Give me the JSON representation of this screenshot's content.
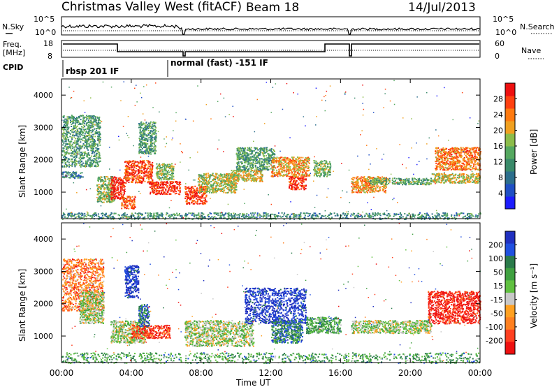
{
  "header": {
    "title": "Christmas Valley West (fitACF)",
    "beam": "Beam 18",
    "date": "14/Jul/2013"
  },
  "summary_panel": {
    "nsky_label": "N.Sky",
    "nsky_ticks": [
      "10^5",
      "10^0"
    ],
    "nsearch_label": "N.Search",
    "nsearch_ticks": [
      "10^5",
      "10^0"
    ],
    "freq_label": [
      "Freq.",
      "[MHz]"
    ],
    "freq_ticks": [
      "18",
      "8"
    ],
    "nave_label": "Nave",
    "nave_ticks": [
      "60",
      "0"
    ],
    "cpid_label": "CPID",
    "cpid_segments": [
      "rbsp 201 IF",
      "normal (fast) -151 IF"
    ]
  },
  "colors": {
    "power_scale": [
      "#1d1dff",
      "#1f4fc4",
      "#2c6e8c",
      "#3a8a6a",
      "#55a860",
      "#8cbc4a",
      "#f0a020",
      "#ff7a10",
      "#ff4010",
      "#ee1010"
    ],
    "velocity_scale": [
      "#2030c0",
      "#2050e0",
      "#2a7a4a",
      "#3fa040",
      "#60c040",
      "#c8c8c8",
      "#ffa020",
      "#ff8020",
      "#ff4020",
      "#ee1010"
    ]
  },
  "chart_data": [
    {
      "type": "heatmap",
      "panel": "power",
      "ylabel": "Slant Range [km]",
      "ylim": [
        180,
        4500
      ],
      "yticks": [
        "1000",
        "2000",
        "3000",
        "4000"
      ],
      "xlim": [
        0,
        24
      ],
      "xticks": [
        "00:00",
        "04:00",
        "08:00",
        "12:00",
        "16:00",
        "20:00",
        "00:00"
      ],
      "colorbar_label": "Power [dB]",
      "colorbar_ticks": [
        "4",
        "8",
        "12",
        "16",
        "20",
        "24",
        "28"
      ],
      "regions": [
        {
          "t0": 0.0,
          "t1": 2.2,
          "r0": 1800,
          "r1": 3400,
          "level": 0.4
        },
        {
          "t0": 0.0,
          "t1": 1.2,
          "r0": 1450,
          "r1": 1650,
          "level": 0.3
        },
        {
          "t0": 2.0,
          "t1": 3.0,
          "r0": 700,
          "r1": 1500,
          "level": 0.5
        },
        {
          "t0": 2.8,
          "t1": 3.6,
          "r0": 800,
          "r1": 1500,
          "level": 0.95
        },
        {
          "t0": 3.4,
          "t1": 4.2,
          "r0": 500,
          "r1": 900,
          "level": 0.8
        },
        {
          "t0": 3.6,
          "t1": 5.2,
          "r0": 1300,
          "r1": 2000,
          "level": 0.85
        },
        {
          "t0": 4.4,
          "t1": 5.4,
          "r0": 2200,
          "r1": 3200,
          "level": 0.4
        },
        {
          "t0": 5.0,
          "t1": 6.8,
          "r0": 950,
          "r1": 1350,
          "level": 0.9
        },
        {
          "t0": 5.4,
          "t1": 6.4,
          "r0": 1400,
          "r1": 1900,
          "level": 0.5
        },
        {
          "t0": 7.0,
          "t1": 8.3,
          "r0": 650,
          "r1": 1200,
          "level": 0.9
        },
        {
          "t0": 7.8,
          "t1": 10.0,
          "r0": 1000,
          "r1": 1600,
          "level": 0.55
        },
        {
          "t0": 9.4,
          "t1": 11.5,
          "r0": 1350,
          "r1": 1700,
          "level": 0.6
        },
        {
          "t0": 10.0,
          "t1": 12.2,
          "r0": 1700,
          "r1": 2400,
          "level": 0.4
        },
        {
          "t0": 12.0,
          "t1": 14.2,
          "r0": 1500,
          "r1": 2100,
          "level": 0.7
        },
        {
          "t0": 13.0,
          "t1": 14.0,
          "r0": 1100,
          "r1": 1500,
          "level": 0.9
        },
        {
          "t0": 14.4,
          "t1": 15.4,
          "r0": 1500,
          "r1": 2000,
          "level": 0.5
        },
        {
          "t0": 16.6,
          "t1": 18.6,
          "r0": 1000,
          "r1": 1500,
          "level": 0.7
        },
        {
          "t0": 17.6,
          "t1": 21.2,
          "r0": 1250,
          "r1": 1450,
          "level": 0.45
        },
        {
          "t0": 21.2,
          "t1": 24.0,
          "r0": 1300,
          "r1": 1600,
          "level": 0.6
        },
        {
          "t0": 21.4,
          "t1": 24.0,
          "r0": 1700,
          "r1": 2400,
          "level": 0.75
        },
        {
          "t0": 0.0,
          "t1": 24.0,
          "r0": 180,
          "r1": 380,
          "level": 0.35
        }
      ]
    },
    {
      "type": "heatmap",
      "panel": "velocity",
      "ylabel": "Slant Range [km]",
      "ylim": [
        180,
        4500
      ],
      "yticks": [
        "1000",
        "2000",
        "3000",
        "4000"
      ],
      "xlim": [
        0,
        24
      ],
      "xticks": [
        "00:00",
        "04:00",
        "08:00",
        "12:00",
        "16:00",
        "20:00",
        "00:00"
      ],
      "xlabel": "Time UT",
      "colorbar_label": "Velocity [m s⁻¹]",
      "colorbar_ticks": [
        "200",
        "100",
        "50",
        "15",
        "-15",
        "-50",
        "-100",
        "-200"
      ],
      "regions": [
        {
          "t0": 0.0,
          "t1": 2.4,
          "r0": 1800,
          "r1": 3400,
          "level": 0.75
        },
        {
          "t0": 1.0,
          "t1": 2.4,
          "r0": 1400,
          "r1": 2400,
          "level": 0.5
        },
        {
          "t0": 2.8,
          "t1": 4.8,
          "r0": 800,
          "r1": 1500,
          "level": 0.5
        },
        {
          "t0": 3.6,
          "t1": 4.4,
          "r0": 2200,
          "r1": 3200,
          "level": 0.05
        },
        {
          "t0": 4.0,
          "t1": 6.2,
          "r0": 950,
          "r1": 1350,
          "level": 0.9
        },
        {
          "t0": 4.4,
          "t1": 5.0,
          "r0": 1300,
          "r1": 2000,
          "level": 0.2
        },
        {
          "t0": 7.0,
          "t1": 11.0,
          "r0": 700,
          "r1": 1500,
          "level": 0.5
        },
        {
          "t0": 10.5,
          "t1": 14.0,
          "r0": 1400,
          "r1": 2500,
          "level": 0.05
        },
        {
          "t0": 12.0,
          "t1": 13.8,
          "r0": 800,
          "r1": 1500,
          "level": 0.25
        },
        {
          "t0": 14.0,
          "t1": 16.0,
          "r0": 1100,
          "r1": 1600,
          "level": 0.35
        },
        {
          "t0": 16.6,
          "t1": 21.2,
          "r0": 1100,
          "r1": 1500,
          "level": 0.5
        },
        {
          "t0": 21.0,
          "t1": 24.0,
          "r0": 1400,
          "r1": 2400,
          "level": 0.95
        },
        {
          "t0": 0.0,
          "t1": 24.0,
          "r0": 180,
          "r1": 500,
          "level": 0.35
        }
      ]
    }
  ]
}
